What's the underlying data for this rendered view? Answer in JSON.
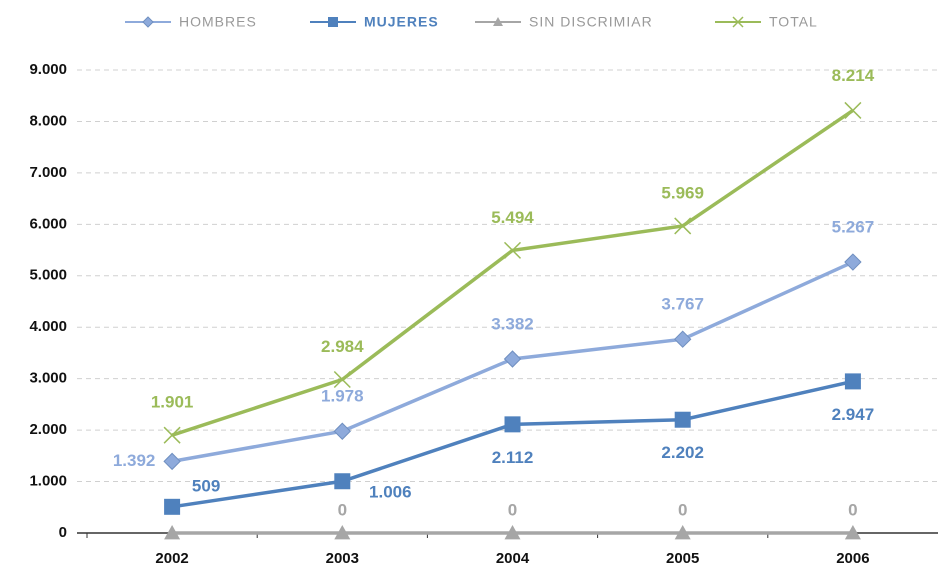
{
  "chart_data": {
    "type": "line",
    "categories": [
      "2002",
      "2003",
      "2004",
      "2005",
      "2006"
    ],
    "series": [
      {
        "name": "HOMBRES",
        "color": "#8eaadb",
        "marker": "diamond",
        "values": [
          1392,
          1978,
          3382,
          3767,
          5267
        ],
        "value_labels": [
          "1.392",
          "1.978",
          "3.382",
          "3.767",
          "5.267"
        ]
      },
      {
        "name": "MUJERES",
        "color": "#4f81bd",
        "marker": "square",
        "values": [
          509,
          1006,
          2112,
          2202,
          2947
        ],
        "value_labels": [
          "509",
          "1.006",
          "2.112",
          "2.202",
          "2.947"
        ]
      },
      {
        "name": "SIN DISCRIMIAR",
        "color": "#a6a6a6",
        "marker": "triangle",
        "values": [
          0,
          0,
          0,
          0,
          0
        ],
        "value_labels": [
          null,
          "0",
          "0",
          "0",
          "0"
        ]
      },
      {
        "name": "TOTAL",
        "color": "#9bbb59",
        "marker": "x",
        "values": [
          1901,
          2984,
          5494,
          5969,
          8214
        ],
        "value_labels": [
          "1.901",
          "2.984",
          "5.494",
          "5.969",
          "8.214"
        ]
      }
    ],
    "ylim": [
      0,
      9000
    ],
    "yticks": [
      0,
      {
        "value": 1000,
        "label": "1.000"
      },
      {
        "value": 2000,
        "label": "2.000"
      },
      {
        "value": 3000,
        "label": "3.000"
      },
      {
        "value": 4000,
        "label": "4.000"
      },
      {
        "value": 5000,
        "label": "5.000"
      },
      {
        "value": 6000,
        "label": "6.000"
      },
      {
        "value": 7000,
        "label": "7.000"
      },
      {
        "value": 8000,
        "label": "8.000"
      },
      {
        "value": 9000,
        "label": "9.000"
      }
    ],
    "grid": true,
    "legend": "top"
  }
}
